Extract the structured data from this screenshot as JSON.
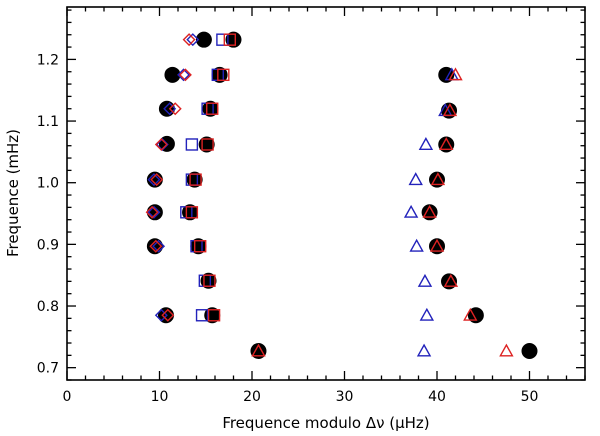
{
  "chart_data": {
    "type": "scatter",
    "title": "",
    "xlabel": "Frequence modulo Δν (μHz)",
    "ylabel": "Frequence (mHz)",
    "xlim": [
      0,
      56
    ],
    "ylim": [
      0.68,
      1.285
    ],
    "xticks": [
      0,
      10,
      20,
      30,
      40,
      50
    ],
    "yticks": [
      0.7,
      0.8,
      0.9,
      1.0,
      1.1,
      1.2
    ],
    "xtick_labels": [
      "0",
      "10",
      "20",
      "30",
      "40",
      "50"
    ],
    "ytick_labels": [
      "0.7",
      "0.8",
      "0.9",
      "1.0",
      "1.1",
      "1.2"
    ],
    "grid": false,
    "series": [
      {
        "marker": "circle",
        "color": "#000000",
        "filled": true,
        "points": [
          [
            14.8,
            1.232
          ],
          [
            18.0,
            1.232
          ],
          [
            11.4,
            1.175
          ],
          [
            16.5,
            1.175
          ],
          [
            41.0,
            1.175
          ],
          [
            10.8,
            1.12
          ],
          [
            15.5,
            1.12
          ],
          [
            41.3,
            1.117
          ],
          [
            10.8,
            1.063
          ],
          [
            15.1,
            1.062
          ],
          [
            41.0,
            1.062
          ],
          [
            9.5,
            1.005
          ],
          [
            13.8,
            1.005
          ],
          [
            40.0,
            1.005
          ],
          [
            9.5,
            0.952
          ],
          [
            13.3,
            0.952
          ],
          [
            39.2,
            0.952
          ],
          [
            9.5,
            0.897
          ],
          [
            14.2,
            0.897
          ],
          [
            40.0,
            0.897
          ],
          [
            15.3,
            0.841
          ],
          [
            41.3,
            0.84
          ],
          [
            10.7,
            0.785
          ],
          [
            15.7,
            0.785
          ],
          [
            44.2,
            0.785
          ],
          [
            20.7,
            0.727
          ],
          [
            50.0,
            0.727
          ]
        ]
      },
      {
        "marker": "square",
        "color": "#2222bb",
        "filled": false,
        "points": [
          [
            16.8,
            1.232
          ],
          [
            16.3,
            1.175
          ],
          [
            15.2,
            1.12
          ],
          [
            13.5,
            1.062
          ],
          [
            13.5,
            1.005
          ],
          [
            12.9,
            0.952
          ],
          [
            14.0,
            0.897
          ],
          [
            14.9,
            0.841
          ],
          [
            14.6,
            0.785
          ]
        ]
      },
      {
        "marker": "square",
        "color": "#dd2222",
        "filled": false,
        "points": [
          [
            17.6,
            1.232
          ],
          [
            16.9,
            1.175
          ],
          [
            15.7,
            1.12
          ],
          [
            15.2,
            1.062
          ],
          [
            13.9,
            1.005
          ],
          [
            13.5,
            0.952
          ],
          [
            14.4,
            0.897
          ],
          [
            15.4,
            0.841
          ],
          [
            15.9,
            0.785
          ]
        ]
      },
      {
        "marker": "diamond",
        "color": "#2222bb",
        "filled": false,
        "points": [
          [
            13.6,
            1.232
          ],
          [
            12.6,
            1.175
          ],
          [
            11.1,
            1.12
          ],
          [
            10.3,
            1.062
          ],
          [
            9.4,
            1.005
          ],
          [
            9.4,
            0.952
          ],
          [
            9.9,
            0.897
          ],
          [
            10.2,
            0.785
          ]
        ]
      },
      {
        "marker": "diamond",
        "color": "#dd2222",
        "filled": false,
        "points": [
          [
            13.2,
            1.232
          ],
          [
            12.8,
            1.175
          ],
          [
            11.7,
            1.12
          ],
          [
            10.2,
            1.062
          ],
          [
            9.7,
            1.005
          ],
          [
            9.2,
            0.952
          ],
          [
            9.6,
            0.897
          ],
          [
            10.9,
            0.785
          ]
        ]
      },
      {
        "marker": "triangle",
        "color": "#2222bb",
        "filled": false,
        "points": [
          [
            41.6,
            1.175
          ],
          [
            40.9,
            1.117
          ],
          [
            38.8,
            1.062
          ],
          [
            37.7,
            1.005
          ],
          [
            37.2,
            0.952
          ],
          [
            37.8,
            0.897
          ],
          [
            38.7,
            0.84
          ],
          [
            38.9,
            0.785
          ],
          [
            38.6,
            0.727
          ]
        ]
      },
      {
        "marker": "triangle",
        "color": "#dd2222",
        "filled": false,
        "points": [
          [
            42.0,
            1.175
          ],
          [
            41.4,
            1.117
          ],
          [
            41.0,
            1.062
          ],
          [
            40.1,
            1.005
          ],
          [
            39.2,
            0.952
          ],
          [
            40.0,
            0.897
          ],
          [
            41.5,
            0.84
          ],
          [
            43.6,
            0.785
          ],
          [
            47.5,
            0.727
          ],
          [
            20.7,
            0.727
          ]
        ]
      }
    ]
  }
}
